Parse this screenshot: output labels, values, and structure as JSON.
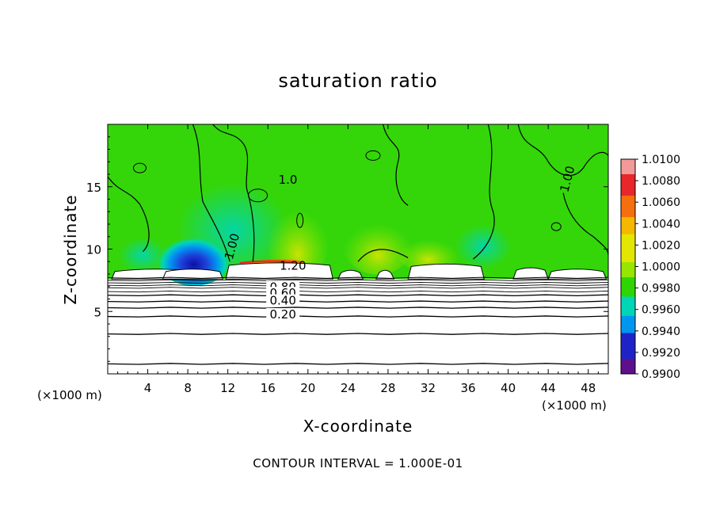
{
  "chart_data": {
    "type": "heatmap",
    "title": "saturation ratio",
    "xlabel": "X-coordinate",
    "ylabel": "Z-coordinate",
    "x_unit_label": "(×1000 m)",
    "y_unit_label": "(×1000 m)",
    "xlim": [
      0,
      50
    ],
    "ylim": [
      0,
      20
    ],
    "x_ticks": [
      4,
      8,
      12,
      16,
      20,
      24,
      28,
      32,
      36,
      40,
      44,
      48
    ],
    "y_ticks": [
      5,
      10,
      15
    ],
    "footer": "CONTOUR INTERVAL = 1.000E-01",
    "colorbar": {
      "labels": [
        "1.0100",
        "1.0080",
        "1.0060",
        "1.0040",
        "1.0020",
        "1.0000",
        "0.9980",
        "0.9960",
        "0.9940",
        "0.9920",
        "0.9900"
      ],
      "colors": [
        "#f29a9a",
        "#e8262b",
        "#f56f0e",
        "#f5b800",
        "#e3e600",
        "#96e600",
        "#2fd500",
        "#00d6b5",
        "#0096f0",
        "#1e23c8",
        "#5e0f8c"
      ]
    },
    "contour_labels": [
      {
        "text": "1.20",
        "x": 18.5,
        "z": 8.6
      },
      {
        "text": "0.80",
        "x": 17.5,
        "z": 6.9
      },
      {
        "text": "0.60",
        "x": 17.5,
        "z": 6.4
      },
      {
        "text": "0.40",
        "x": 17.5,
        "z": 5.8
      },
      {
        "text": "0.20",
        "x": 17.5,
        "z": 4.7
      },
      {
        "text": "1.00",
        "x": 12.5,
        "z": 10.2
      },
      {
        "text": "1.00",
        "x": 46.0,
        "z": 15.6
      },
      {
        "text": "1.0",
        "x": 18.0,
        "z": 15.5
      }
    ],
    "contour_lines_z": [
      0.8,
      3.2,
      4.6,
      5.3,
      5.8,
      6.3,
      6.6,
      6.9,
      7.1,
      7.3,
      7.5,
      7.7
    ]
  }
}
